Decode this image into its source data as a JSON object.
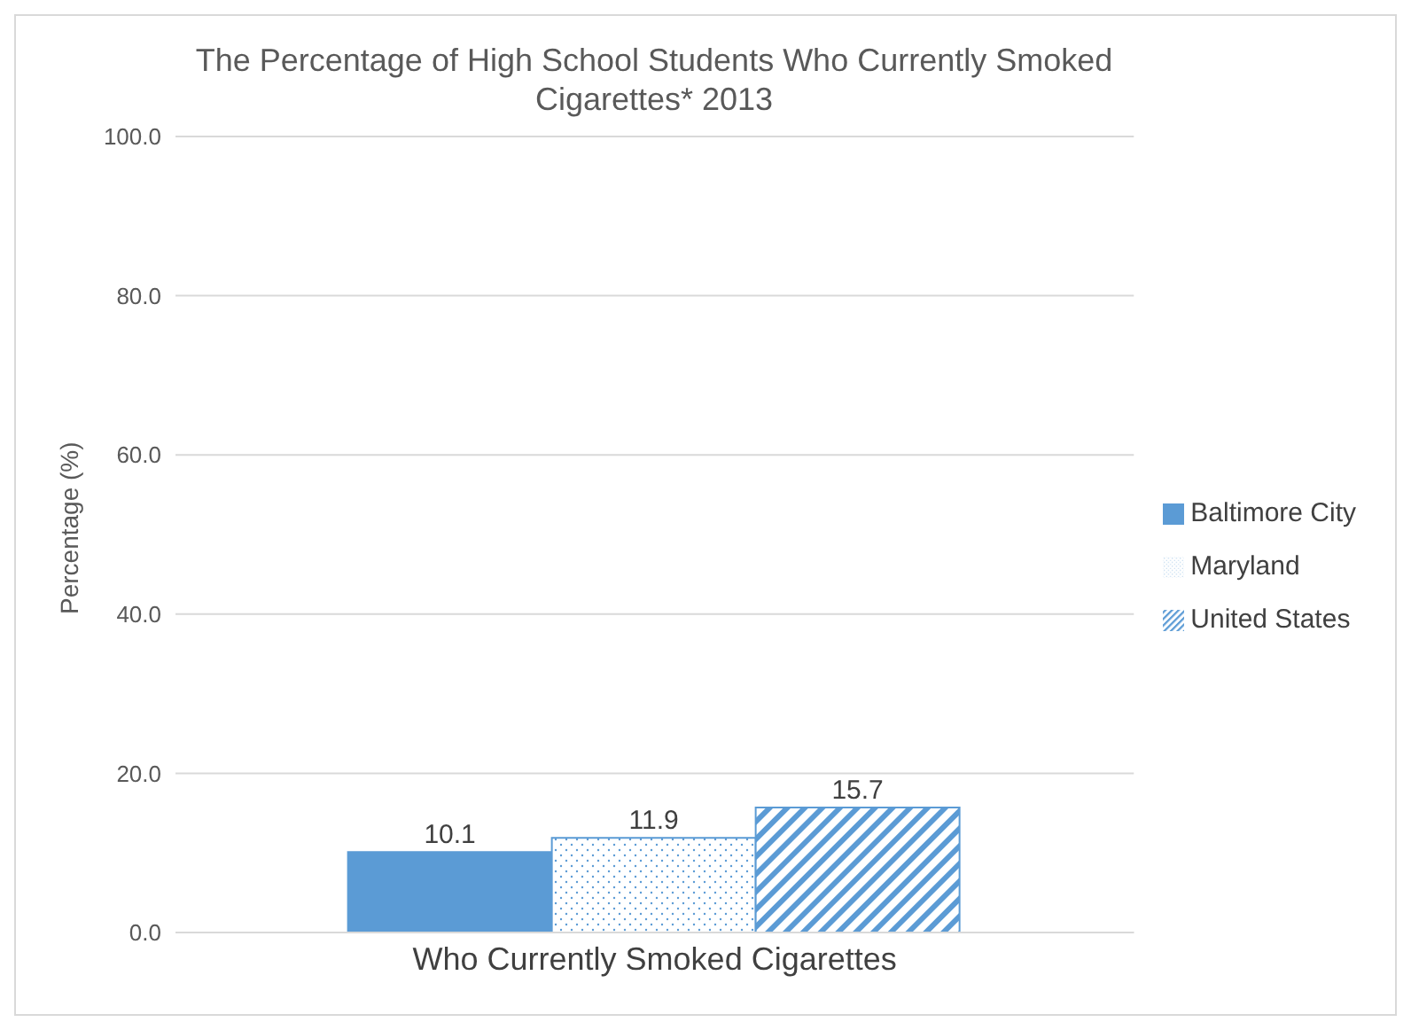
{
  "chart_data": {
    "type": "bar",
    "title": "The Percentage of High School Students Who Currently Smoked Cigarettes* 2013",
    "ylabel": "Percentage (%)",
    "categories": [
      "Who Currently Smoked Cigarettes"
    ],
    "series": [
      {
        "name": "Baltimore City",
        "color": "#5b9bd5",
        "values": [
          10.1
        ]
      },
      {
        "name": "Maryland",
        "color": "#5b9bd5",
        "values": [
          11.9
        ]
      },
      {
        "name": "United States",
        "color": "#5b9bd5",
        "values": [
          15.7
        ]
      }
    ],
    "ylim": [
      0,
      100
    ],
    "yticks": [
      {
        "value": 0,
        "label": "0.0"
      },
      {
        "value": 20,
        "label": "20.0"
      },
      {
        "value": 40,
        "label": "40.0"
      },
      {
        "value": 60,
        "label": "60.0"
      },
      {
        "value": 80,
        "label": "80.0"
      },
      {
        "value": 100,
        "label": "100.0"
      }
    ],
    "grid": "y",
    "legend": "right",
    "data_labels": true
  }
}
